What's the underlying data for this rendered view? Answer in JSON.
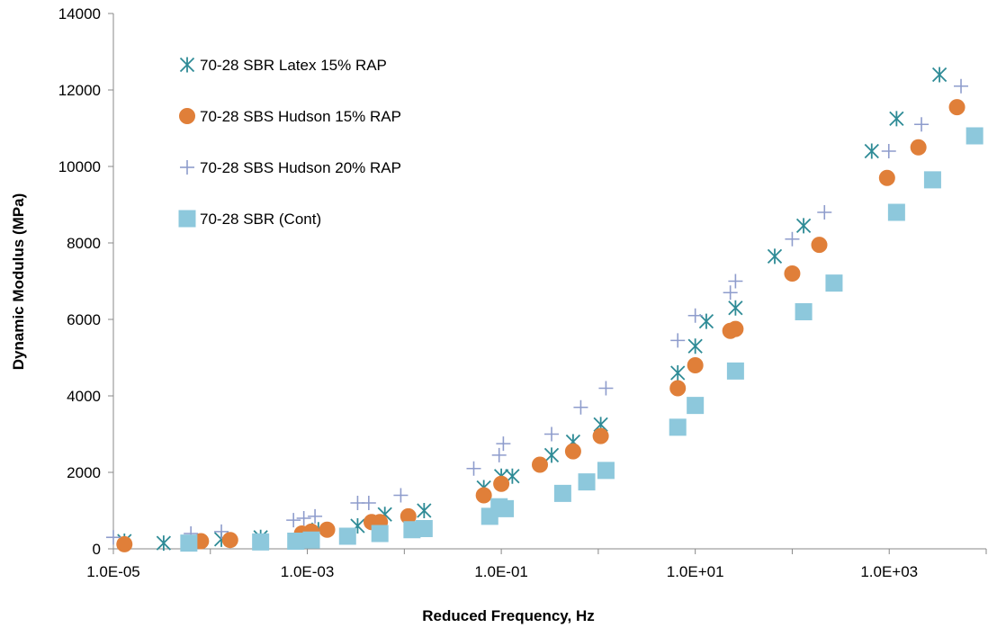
{
  "chart_data": {
    "type": "scatter",
    "x_scale": "log",
    "xlabel": "Reduced Frequency, Hz",
    "ylabel": "Dynamic Modulus (MPa)",
    "xlim": [
      1e-05,
      10000
    ],
    "ylim": [
      0,
      14000
    ],
    "x_ticks": [
      1e-05,
      0.001,
      0.1,
      10,
      1000
    ],
    "x_tick_labels": [
      "1.0E-05",
      "1.0E-03",
      "1.0E-01",
      "1.0E+01",
      "1.0E+03"
    ],
    "y_ticks": [
      0,
      2000,
      4000,
      6000,
      8000,
      10000,
      12000,
      14000
    ],
    "y_tick_labels": [
      "0",
      "2000",
      "4000",
      "6000",
      "8000",
      "10000",
      "12000",
      "14000"
    ],
    "grid": false,
    "legend_position": "top-left",
    "series": [
      {
        "name": "70-28 SBR Latex 15% RAP",
        "marker": "asterisk",
        "color": "#2e8b96",
        "points": [
          [
            1.3e-05,
            200
          ],
          [
            3.3e-05,
            150
          ],
          [
            0.00013,
            250
          ],
          [
            0.00033,
            300
          ],
          [
            0.0013,
            500
          ],
          [
            0.0033,
            600
          ],
          [
            0.0063,
            900
          ],
          [
            0.016,
            1000
          ],
          [
            0.066,
            1600
          ],
          [
            0.1,
            1900
          ],
          [
            0.13,
            1900
          ],
          [
            0.33,
            2450
          ],
          [
            0.55,
            2800
          ],
          [
            1.06,
            3250
          ],
          [
            6.6,
            4600
          ],
          [
            10.0,
            5300
          ],
          [
            13.0,
            5950
          ],
          [
            26.0,
            6300
          ],
          [
            66,
            7650
          ],
          [
            131,
            8450
          ],
          [
            660,
            10400
          ],
          [
            1190,
            11250
          ],
          [
            3300,
            12400
          ]
        ]
      },
      {
        "name": "70-28 SBS Hudson 15% RAP",
        "marker": "circle",
        "color": "#e07f39",
        "points": [
          [
            1.3e-05,
            120
          ],
          [
            8e-05,
            200
          ],
          [
            0.00016,
            230
          ],
          [
            0.00088,
            400
          ],
          [
            0.0011,
            450
          ],
          [
            0.0016,
            500
          ],
          [
            0.0046,
            700
          ],
          [
            0.0056,
            700
          ],
          [
            0.011,
            850
          ],
          [
            0.066,
            1400
          ],
          [
            0.1,
            1700
          ],
          [
            0.25,
            2200
          ],
          [
            0.55,
            2550
          ],
          [
            1.06,
            2950
          ],
          [
            6.6,
            4200
          ],
          [
            10.0,
            4800
          ],
          [
            23.0,
            5700
          ],
          [
            26.0,
            5750
          ],
          [
            100,
            7200
          ],
          [
            190,
            7950
          ],
          [
            950,
            9700
          ],
          [
            2000,
            10500
          ],
          [
            5000,
            11550
          ]
        ]
      },
      {
        "name": "70-28 SBS Hudson 20% RAP",
        "marker": "plus",
        "color": "#8e9ccc",
        "points": [
          [
            1e-05,
            300
          ],
          [
            6.3e-05,
            400
          ],
          [
            0.00013,
            450
          ],
          [
            0.00072,
            750
          ],
          [
            0.00092,
            800
          ],
          [
            0.0012,
            850
          ],
          [
            0.0033,
            1200
          ],
          [
            0.0043,
            1200
          ],
          [
            0.0092,
            1400
          ],
          [
            0.052,
            2100
          ],
          [
            0.095,
            2450
          ],
          [
            0.105,
            2750
          ],
          [
            0.33,
            3000
          ],
          [
            0.66,
            3700
          ],
          [
            1.2,
            4200
          ],
          [
            6.6,
            5450
          ],
          [
            10.0,
            6100
          ],
          [
            23.0,
            6700
          ],
          [
            26.0,
            7000
          ],
          [
            100,
            8100
          ],
          [
            215,
            8800
          ],
          [
            990,
            10400
          ],
          [
            2150,
            11100
          ],
          [
            5500,
            12100
          ]
        ]
      },
      {
        "name": "70-28 SBR (Cont)",
        "marker": "square",
        "color": "#8dc8dc",
        "points": [
          [
            6e-05,
            150
          ],
          [
            0.00033,
            180
          ],
          [
            0.00076,
            200
          ],
          [
            0.0011,
            230
          ],
          [
            0.0026,
            330
          ],
          [
            0.0056,
            400
          ],
          [
            0.012,
            500
          ],
          [
            0.016,
            530
          ],
          [
            0.076,
            850
          ],
          [
            0.095,
            1100
          ],
          [
            0.11,
            1050
          ],
          [
            0.43,
            1450
          ],
          [
            0.76,
            1750
          ],
          [
            1.2,
            2050
          ],
          [
            6.6,
            3180
          ],
          [
            10.0,
            3750
          ],
          [
            26.0,
            4650
          ],
          [
            131,
            6200
          ],
          [
            270,
            6950
          ],
          [
            1190,
            8800
          ],
          [
            2800,
            9650
          ],
          [
            7600,
            10800
          ]
        ]
      }
    ]
  }
}
